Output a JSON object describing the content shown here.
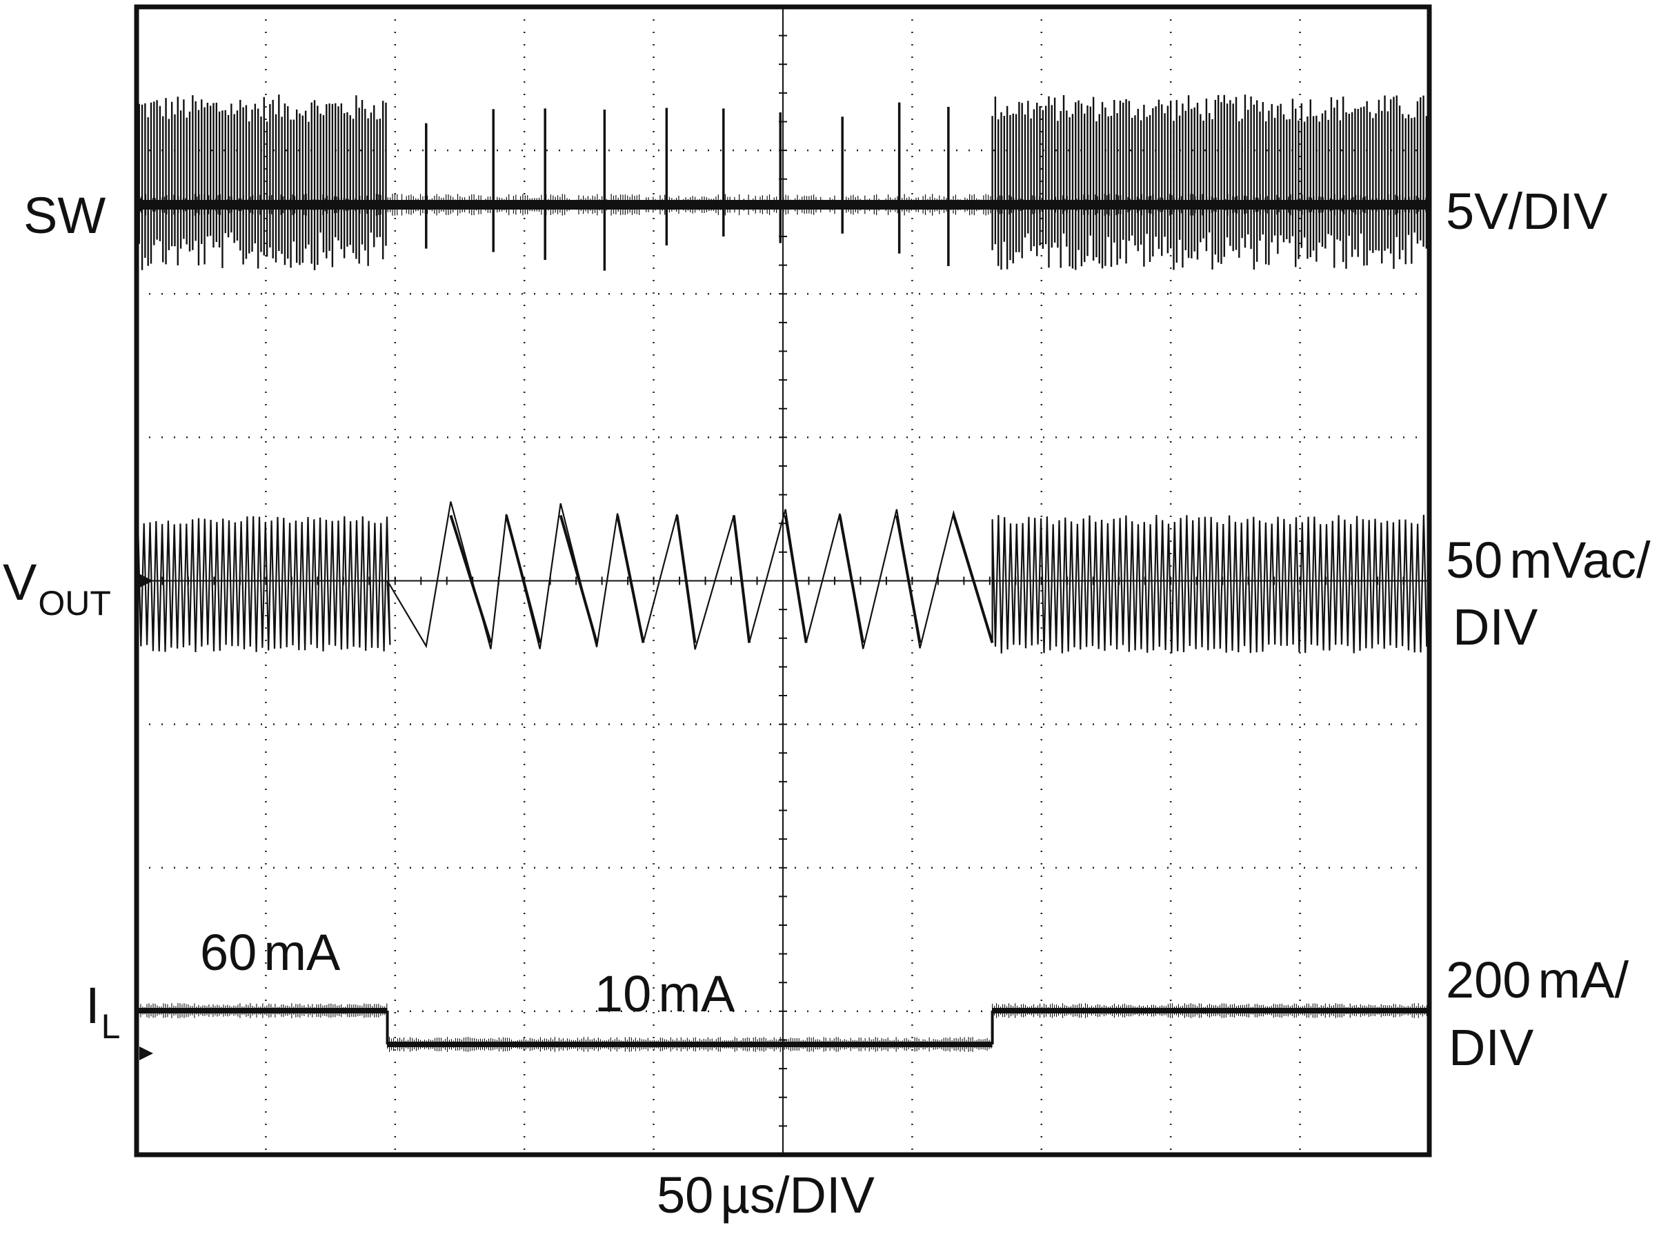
{
  "chart_data": {
    "type": "line",
    "title": "",
    "xlabel": "50 µs/DIV",
    "x_divisions": 10,
    "y_divisions": 8,
    "x_unit": "µs",
    "x_per_div": 50,
    "xlim": [
      0,
      500
    ],
    "grid": true,
    "channels": [
      {
        "name": "SW",
        "label": "SW",
        "scale": "5V/DIV",
        "trace": "switching pulses; dense pulse bursts from 0 to ~97 µs and ~331 to 500 µs, isolated pulses during light load",
        "isolated_pulse_times_us": [
          112,
          138,
          158,
          181,
          205,
          227,
          249,
          273,
          295,
          314
        ]
      },
      {
        "name": "VOUT",
        "label_main": "V",
        "label_sub": "OUT",
        "scale_value": "50",
        "scale_unit": "mVac/",
        "scale_line2": "DIV",
        "trace": "output ripple; fast small ripple at 60 mA, sawtooth ripple during 10 mA"
      },
      {
        "name": "IL",
        "label_main": "I",
        "label_sub": "L",
        "scale_value": "200",
        "scale_unit": "mA/",
        "scale_line2": "DIV",
        "steps": [
          {
            "from_us": 0,
            "to_us": 97,
            "current": "60 mA"
          },
          {
            "from_us": 97,
            "to_us": 331,
            "current": "10 mA"
          },
          {
            "from_us": 331,
            "to_us": 500,
            "current": "60 mA"
          }
        ]
      }
    ],
    "annotations": [
      {
        "value": "60",
        "unit": "mA"
      },
      {
        "value": "10",
        "unit": "mA"
      }
    ],
    "xlabel_value": "50",
    "xlabel_unit": "µs/DIV",
    "colors": {
      "trace": "#111111",
      "grid": "#222222",
      "background": "#ffffff"
    }
  }
}
